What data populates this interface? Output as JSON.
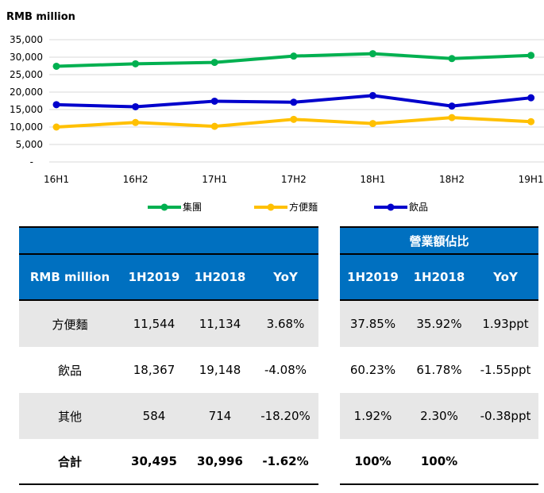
{
  "chart_data": {
    "type": "line",
    "title": "RMB million",
    "categories": [
      "16H1",
      "16H2",
      "17H1",
      "17H2",
      "18H1",
      "18H2",
      "19H1"
    ],
    "ylim": [
      0,
      35000
    ],
    "yticks": [
      "-",
      "5,000",
      "10,000",
      "15,000",
      "20,000",
      "25,000",
      "30,000",
      "35,000"
    ],
    "grid": true,
    "legend_position": "bottom",
    "series": [
      {
        "name": "集團",
        "color": "#00b050",
        "values": [
          27400,
          28100,
          28500,
          30300,
          31000,
          29600,
          30500
        ]
      },
      {
        "name": "方便麵",
        "color": "#ffc000",
        "values": [
          10000,
          11300,
          10200,
          12200,
          11000,
          12700,
          11544
        ]
      },
      {
        "name": "飲品",
        "color": "#0000cc",
        "values": [
          16400,
          15800,
          17400,
          17100,
          19000,
          16000,
          18367
        ]
      }
    ]
  },
  "table_left": {
    "header": [
      "RMB million",
      "1H2019",
      "1H2018",
      "YoY"
    ],
    "rows": [
      [
        "方便麵",
        "11,544",
        "11,134",
        "3.68%"
      ],
      [
        "飲品",
        "18,367",
        "19,148",
        "-4.08%"
      ],
      [
        "其他",
        "584",
        "714",
        "-18.20%"
      ]
    ],
    "total": [
      "合計",
      "30,495",
      "30,996",
      "-1.62%"
    ]
  },
  "table_right": {
    "title": "營業額佔比",
    "header": [
      "1H2019",
      "1H2018",
      "YoY"
    ],
    "rows": [
      [
        "37.85%",
        "35.92%",
        "1.93ppt"
      ],
      [
        "60.23%",
        "61.78%",
        "-1.55ppt"
      ],
      [
        "1.92%",
        "2.30%",
        "-0.38ppt"
      ]
    ],
    "total": [
      "100%",
      "100%",
      ""
    ]
  }
}
